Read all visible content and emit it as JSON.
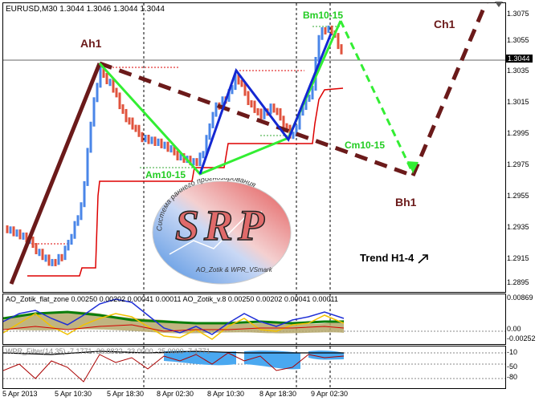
{
  "main_chart": {
    "symbol_header": "EURUSD,M30  1.3044 1.3046 1.3044 1.3044",
    "price_axis": [
      "1.3075",
      "1.3055",
      "1.3035",
      "1.3015",
      "1.2995",
      "1.2975",
      "1.2955",
      "1.2935",
      "1.2915",
      "1.2895"
    ],
    "current_price": "1.3044",
    "wave_labels": {
      "ah1": "Ah1",
      "am10": "Am10-15",
      "bm10": "Bm10-15",
      "cm10": "Cm10-15",
      "bh1": "Bh1",
      "ch1": "Ch1"
    },
    "trend_label": "Trend H1-4",
    "logo": {
      "arc_text": "Система раннего прогнозирования",
      "letters": "SRP",
      "credit": "AO_Zotik & WPR_VSmark"
    }
  },
  "indicator_ao": {
    "header": "AO_Zotik_flat_zone 0.00250 0.00202 0.00041 0.00011   AO_Zotik_v.8 0.00250 0.00202 0.00041 0.00011",
    "axis": [
      "0.00869",
      "0.00",
      "-0.00252"
    ]
  },
  "indicator_wpr": {
    "header": "WPR_Filter(14,35) -7.1771 -30.8832 -23.0000 -25.0000 -7.1771",
    "axis": [
      "-10",
      "-50",
      "-80"
    ]
  },
  "time_axis": [
    "5 Apr 2013",
    "5 Apr 10:30",
    "5 Apr 18:30",
    "8 Apr 02:30",
    "8 Apr 10:30",
    "8 Apr 18:30",
    "9 Apr 02:30"
  ],
  "colors": {
    "wave_h1": "#6b1a1a",
    "wave_m10_green": "#33ee33",
    "wave_m10_blue": "#1428d2",
    "bull_candle": "#4a86e8",
    "bear_candle": "#e0533d",
    "channel": "#dd0000"
  }
}
